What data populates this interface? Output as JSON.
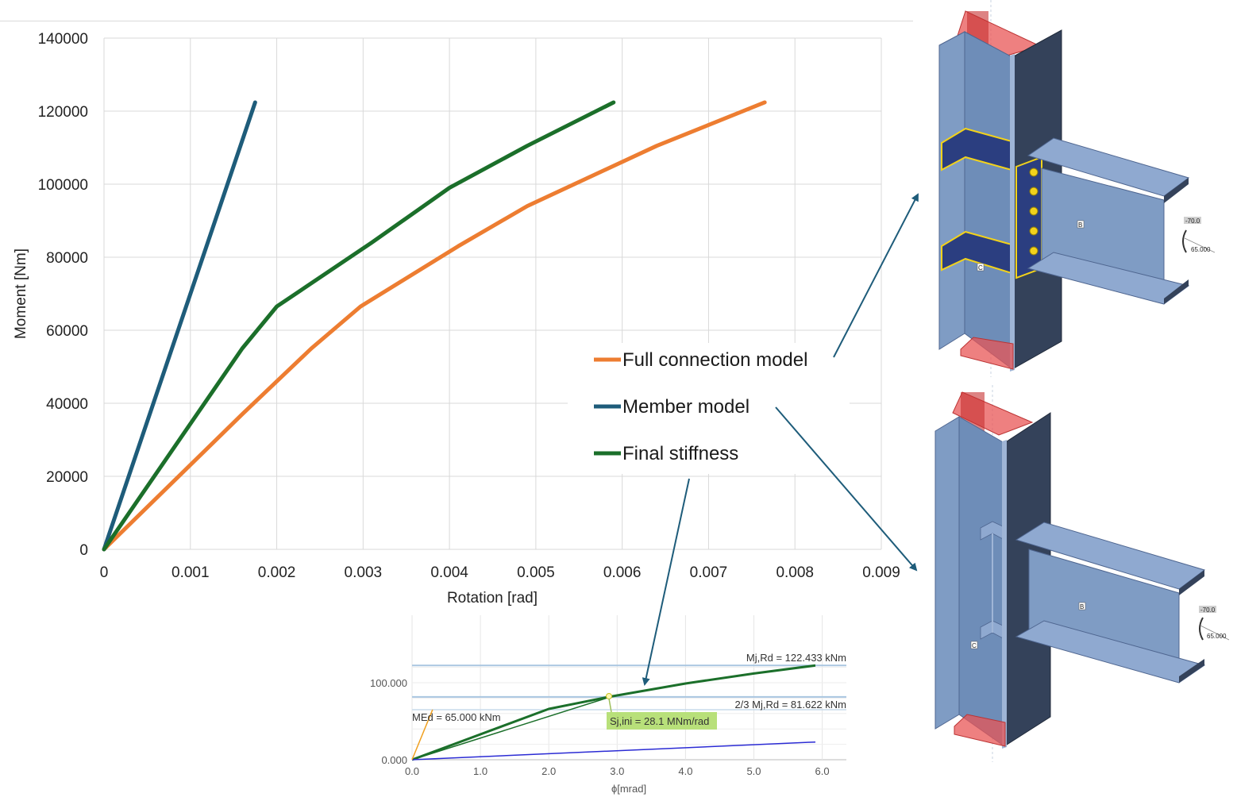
{
  "chart_data": [
    {
      "type": "line",
      "xlabel": "Rotation [rad]",
      "ylabel": "Moment [Nm]",
      "xlim": [
        0,
        0.009
      ],
      "ylim": [
        0,
        140000
      ],
      "x_ticks": [
        "0",
        "0.001",
        "0.002",
        "0.003",
        "0.004",
        "0.005",
        "0.006",
        "0.007",
        "0.008",
        "0.009"
      ],
      "y_ticks": [
        "0",
        "20000",
        "40000",
        "60000",
        "80000",
        "100000",
        "120000",
        "140000"
      ],
      "grid": true,
      "legend_position": "right",
      "series": [
        {
          "name": "Full connection model",
          "color": "#ED7D31",
          "x": [
            0,
            0.0016,
            0.0024,
            0.00297,
            0.0041,
            0.0049,
            0.0064,
            0.00765
          ],
          "y": [
            0,
            37000,
            55000,
            66500,
            83000,
            94000,
            110500,
            122400
          ]
        },
        {
          "name": "Member model",
          "color": "#1E5C7A",
          "x": [
            0,
            0.00175
          ],
          "y": [
            0,
            122400
          ]
        },
        {
          "name": "Final stiffness",
          "color": "#1B6F2A",
          "x": [
            0,
            0.0016,
            0.002,
            0.0031,
            0.004,
            0.0049,
            0.0059
          ],
          "y": [
            0,
            55000,
            66500,
            84000,
            99000,
            110500,
            122400
          ]
        }
      ]
    },
    {
      "type": "line",
      "xlabel": "ϕ[mrad]",
      "xlim": [
        0,
        6.3
      ],
      "ylim": [
        0,
        140
      ],
      "x_ticks": [
        "0.0",
        "1.0",
        "2.0",
        "3.0",
        "4.0",
        "5.0",
        "6.0"
      ],
      "y_ticks": [
        "0.000",
        "100.000"
      ],
      "grid": true,
      "reference_lines": [
        {
          "label": "Mj,Rd = 122.433 kNm",
          "y": 122.433
        },
        {
          "label": "2/3 Mj,Rd = 81.622 kNm",
          "y": 81.622
        },
        {
          "label": "MEd = 65.000 kNm",
          "y": 65.0
        }
      ],
      "annotation": "Sj,ini = 28.1 MNm/rad",
      "series": [
        {
          "color": "#1B6F2A",
          "x": [
            0,
            2.0,
            2.9,
            4.0,
            5.0,
            5.9
          ],
          "y": [
            0,
            66,
            82,
            99,
            112,
            122.4
          ]
        },
        {
          "color": "#1B6F2A",
          "x": [
            0,
            2.9
          ],
          "y": [
            0,
            81.6
          ]
        },
        {
          "color": "#2B2BD4",
          "x": [
            0,
            5.9
          ],
          "y": [
            0,
            23
          ]
        },
        {
          "color": "#F0A020",
          "x": [
            0,
            0.3
          ],
          "y": [
            0,
            65
          ]
        }
      ]
    }
  ],
  "models": {
    "full": {
      "label_beam": "B",
      "label_column": "C",
      "dim_top": "-70.0",
      "dim_bottom": "65.000"
    },
    "member": {
      "label_beam": "B",
      "label_column": "C",
      "dim_top": "-70.0",
      "dim_bottom": "65.000"
    }
  },
  "colors": {
    "steel_light": "#7F9CC4",
    "steel_dark": "#34425A",
    "plate": "#2B3E80",
    "weld": "#F2D21B",
    "load": "#E85555",
    "arrow": "#1E5C7A"
  }
}
